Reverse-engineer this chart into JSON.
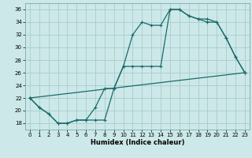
{
  "xlabel": "Humidex (Indice chaleur)",
  "bg_color": "#cce8e8",
  "grid_color": "#aacccc",
  "line_color": "#1a6b6b",
  "xlim": [
    -0.5,
    23.5
  ],
  "ylim": [
    17,
    37
  ],
  "xticks": [
    0,
    1,
    2,
    3,
    4,
    5,
    6,
    7,
    8,
    9,
    10,
    11,
    12,
    13,
    14,
    15,
    16,
    17,
    18,
    19,
    20,
    21,
    22,
    23
  ],
  "yticks": [
    18,
    20,
    22,
    24,
    26,
    28,
    30,
    32,
    34,
    36
  ],
  "line1_x": [
    0,
    1,
    2,
    3,
    4,
    5,
    6,
    7,
    8,
    9,
    10,
    11,
    12,
    13,
    14,
    15,
    16,
    17,
    18,
    19,
    20,
    21,
    22,
    23
  ],
  "line1_y": [
    22,
    20.5,
    19.5,
    18,
    18,
    18.5,
    18.5,
    18.5,
    18.5,
    23.5,
    27,
    32,
    34,
    33.5,
    33.5,
    36,
    36,
    35,
    34.5,
    34.5,
    34,
    31.5,
    28.5,
    26
  ],
  "line2_x": [
    0,
    1,
    2,
    3,
    4,
    5,
    6,
    7,
    8,
    9,
    10,
    11,
    12,
    13,
    14,
    15,
    16,
    17,
    18,
    19,
    20,
    21,
    22,
    23
  ],
  "line2_y": [
    22,
    20.5,
    19.5,
    18,
    18,
    18.5,
    18.5,
    20.5,
    23.5,
    23.5,
    27,
    27,
    27,
    27,
    27,
    36,
    36,
    35,
    34.5,
    34,
    34,
    31.5,
    28.5,
    26
  ],
  "line3_x": [
    0,
    23
  ],
  "line3_y": [
    22,
    26
  ],
  "xlabel_fontsize": 6,
  "tick_fontsize": 5
}
